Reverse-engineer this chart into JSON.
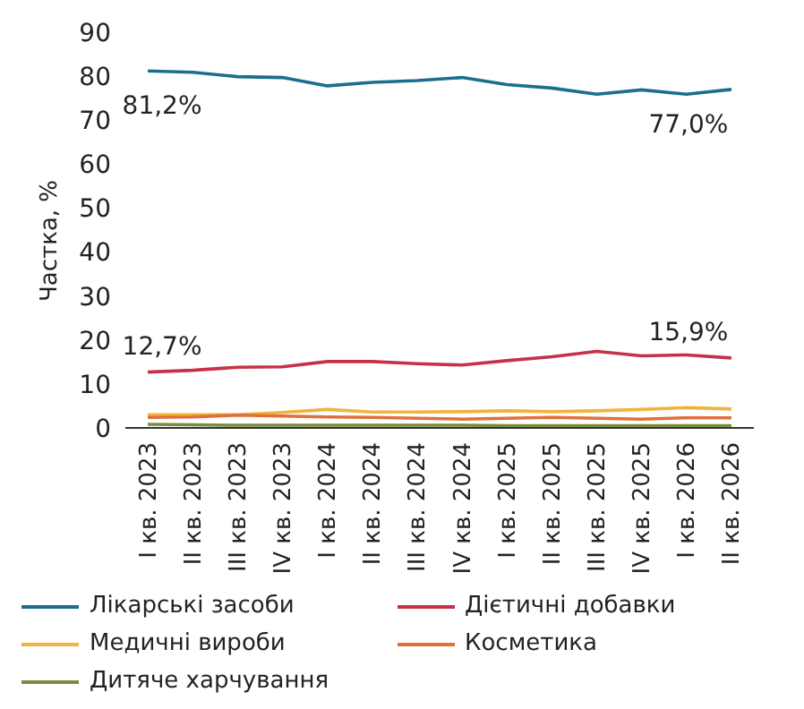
{
  "chart_data": {
    "type": "line",
    "ylabel": "Частка, %",
    "categories": [
      "I кв. 2023",
      "II кв. 2023",
      "III кв. 2023",
      "IV кв. 2023",
      "I кв. 2024",
      "II кв. 2024",
      "III кв. 2024",
      "IV кв. 2024",
      "I кв. 2025",
      "II кв. 2025",
      "III кв. 2025",
      "IV кв. 2025",
      "I кв. 2026",
      "II кв. 2026"
    ],
    "series": [
      {
        "name": "Лікарські засоби",
        "color": "#1b6f8c",
        "values": [
          81.2,
          80.9,
          79.9,
          79.7,
          77.8,
          78.6,
          79.0,
          79.7,
          78.1,
          77.3,
          75.9,
          76.9,
          75.9,
          77.0
        ]
      },
      {
        "name": "Дієтичні добавки",
        "color": "#c73048",
        "values": [
          12.7,
          13.1,
          13.8,
          13.9,
          15.1,
          15.1,
          14.6,
          14.3,
          15.3,
          16.2,
          17.4,
          16.4,
          16.6,
          15.9
        ]
      },
      {
        "name": "Медичні вироби",
        "color": "#f0b43c",
        "values": [
          3.0,
          3.0,
          3.0,
          3.5,
          4.2,
          3.6,
          3.6,
          3.7,
          3.9,
          3.7,
          3.9,
          4.2,
          4.6,
          4.3
        ]
      },
      {
        "name": "Косметика",
        "color": "#e0703a",
        "values": [
          2.4,
          2.5,
          2.9,
          2.7,
          2.5,
          2.4,
          2.2,
          2.0,
          2.2,
          2.4,
          2.2,
          2.0,
          2.3,
          2.3
        ]
      },
      {
        "name": "Дитяче харчування",
        "color": "#7a8c3a",
        "values": [
          0.8,
          0.7,
          0.6,
          0.6,
          0.6,
          0.6,
          0.6,
          0.6,
          0.5,
          0.5,
          0.5,
          0.5,
          0.5,
          0.5
        ]
      }
    ],
    "ylim": [
      0,
      90
    ],
    "yticks": [
      0,
      10,
      20,
      30,
      40,
      50,
      60,
      70,
      80,
      90
    ],
    "grid": false,
    "legend": "bottom",
    "marker": "none",
    "line_style": "solid",
    "annotations": [
      {
        "text": "81,2%",
        "x": "I кв. 2023",
        "y": 81.2
      },
      {
        "text": "77,0%",
        "x": "II кв. 2026",
        "y": 77.0
      },
      {
        "text": "12,7%",
        "x": "I кв. 2023",
        "y": 12.7
      },
      {
        "text": "15,9%",
        "x": "II кв. 2026",
        "y": 15.9
      }
    ]
  }
}
